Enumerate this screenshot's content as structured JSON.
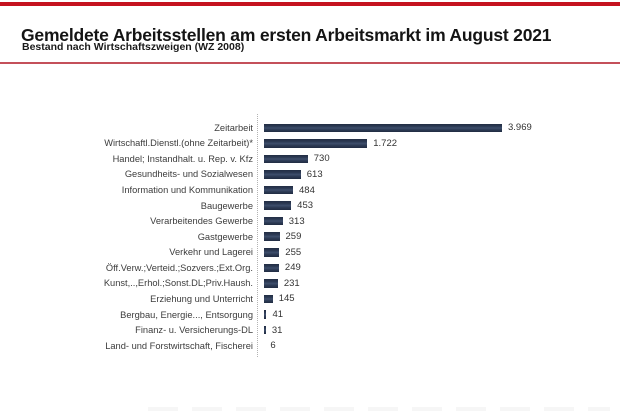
{
  "header": {
    "title": "Gemeldete Arbeitsstellen am ersten Arbeitsmarkt im August 2021",
    "subtitle": "Bestand nach Wirtschaftszweigen (WZ 2008)"
  },
  "colors": {
    "accent_red_top": "#c5121f",
    "accent_red_divider": "#c4505a",
    "bar": "#2c3a54",
    "label_text": "#3c3c3c"
  },
  "chart_data": {
    "type": "bar",
    "orientation": "horizontal",
    "title": "Gemeldete Arbeitsstellen am ersten Arbeitsmarkt im August 2021",
    "subtitle": "Bestand nach Wirtschaftszweigen (WZ 2008)",
    "categories": [
      "Zeitarbeit",
      "Wirtschaftl.Dienstl.(ohne Zeitarbeit)*",
      "Handel; Instandhalt. u. Rep. v. Kfz",
      "Gesundheits- und Sozialwesen",
      "Information und Kommunikation",
      "Baugewerbe",
      "Verarbeitendes Gewerbe",
      "Gastgewerbe",
      "Verkehr und Lagerei",
      "Öff.Verw.;Verteid.;Sozvers.;Ext.Org.",
      "Kunst,..,Erhol.;Sonst.DL;Priv.Haush.",
      "Erziehung und Unterricht",
      "Bergbau, Energie..., Entsorgung",
      "Finanz- u. Versicherungs-DL",
      "Land- und Forstwirtschaft, Fischerei"
    ],
    "values": [
      3969,
      1722,
      730,
      613,
      484,
      453,
      313,
      259,
      255,
      249,
      231,
      145,
      41,
      31,
      6
    ],
    "value_labels": [
      "3.969",
      "1.722",
      "730",
      "613",
      "484",
      "453",
      "313",
      "259",
      "255",
      "249",
      "231",
      "145",
      "41",
      "31",
      "6"
    ],
    "xlim": [
      0,
      4200
    ],
    "grid": false,
    "legend": null,
    "bar_color": "#2c3a54",
    "data_labels_position": "right-of-bar"
  }
}
